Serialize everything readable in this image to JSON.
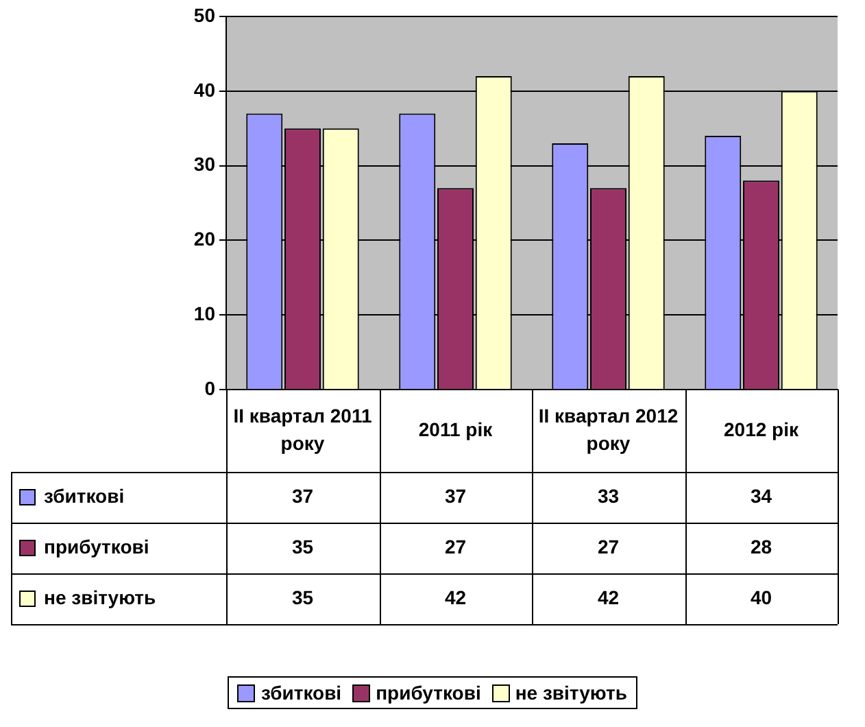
{
  "chart_data": {
    "type": "bar",
    "categories": [
      "II квартал 2011 року",
      "2011 рік",
      "II квартал 2012 року",
      "2012 рік"
    ],
    "series": [
      {
        "name": "збиткові",
        "color": "#9999ff",
        "values": [
          37,
          37,
          33,
          34
        ]
      },
      {
        "name": "прибуткові",
        "color": "#993366",
        "values": [
          35,
          27,
          27,
          28
        ]
      },
      {
        "name": "не звітують",
        "color": "#ffffcc",
        "values": [
          35,
          42,
          42,
          40
        ]
      }
    ],
    "ylim": [
      0,
      50
    ],
    "yticks": [
      0,
      10,
      20,
      30,
      40,
      50
    ],
    "grid": "y",
    "legend": "bottom",
    "data_labels": true
  }
}
